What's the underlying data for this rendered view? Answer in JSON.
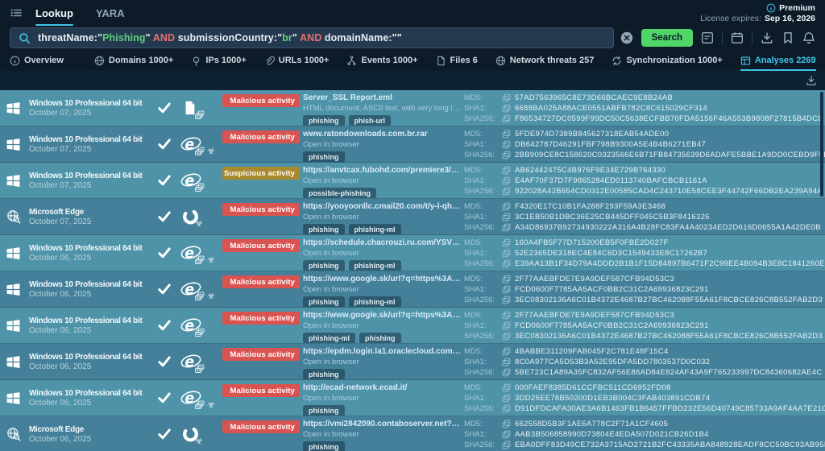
{
  "app": {
    "nav": {
      "lookup": "Lookup",
      "yara": "YARA"
    },
    "license": {
      "premium": "Premium",
      "expires_label": "License expires:",
      "expires_date": "Sep 16, 2026"
    }
  },
  "search": {
    "button": "Search",
    "query_parts": [
      {
        "text": "threatName:\"",
        "type": "plain"
      },
      {
        "text": "Phishing",
        "type": "value"
      },
      {
        "text": "\" ",
        "type": "plain"
      },
      {
        "text": "AND",
        "type": "operator"
      },
      {
        "text": " submissionCountry:\"",
        "type": "plain"
      },
      {
        "text": "br",
        "type": "value"
      },
      {
        "text": "\" ",
        "type": "plain"
      },
      {
        "text": "AND",
        "type": "operator"
      },
      {
        "text": " domainName:\"\"",
        "type": "plain"
      }
    ]
  },
  "result_tabs": [
    {
      "id": "overview",
      "icon": "info",
      "label": "Overview",
      "count": "",
      "active": false,
      "divider_after": true
    },
    {
      "id": "domains",
      "icon": "globe",
      "label": "Domains",
      "count": "1000+",
      "active": false
    },
    {
      "id": "ips",
      "icon": "pin",
      "label": "IPs",
      "count": "1000+",
      "active": false
    },
    {
      "id": "urls",
      "icon": "link",
      "label": "URLs",
      "count": "1000+",
      "active": false
    },
    {
      "id": "events",
      "icon": "branch",
      "label": "Events",
      "count": "1000+",
      "active": false
    },
    {
      "id": "files",
      "icon": "filetab",
      "label": "Files",
      "count": "6",
      "active": false
    },
    {
      "id": "network-threats",
      "icon": "netglobe",
      "label": "Network threats",
      "count": "257",
      "active": false
    },
    {
      "id": "synchronization",
      "icon": "sync",
      "label": "Synchronization",
      "count": "1000+",
      "active": false
    },
    {
      "id": "analyses",
      "icon": "window",
      "label": "Analyses",
      "count": "2269",
      "active": true
    }
  ],
  "table": {
    "hash_labels": {
      "md5": "MD5:",
      "sha1": "SHA1:",
      "sha256": "SHA256:"
    },
    "rows": [
      {
        "os": "Windows 10 Professional 64 bit",
        "os_icon": "windows",
        "date": "October 07, 2025",
        "verified": true,
        "main_icon": "file",
        "sub_icons": [
          "copies"
        ],
        "badge": {
          "label": "Malicious activity",
          "level": "malicious"
        },
        "title": "Server_SSL Report.eml",
        "subtitle": "HTML document, ASCII text, with very long lines (426), with CRLF...",
        "tags": [
          "phishing",
          "phish-url"
        ],
        "hashes": {
          "md5": "57AD7563965C8E73D66BCAEC9E8B24AB",
          "sha1": "6688BA025A88ACE0551ABFB782C8C615029CF314",
          "sha256": "F86534727DC0599F99DC50C5638ECFBB70FDA5156F46A553B9808F27815B4DCB"
        }
      },
      {
        "os": "Windows 10 Professional 64 bit",
        "os_icon": "windows",
        "date": "October 07, 2025",
        "verified": true,
        "main_icon": "ie",
        "sub_icons": [
          "copies",
          "biohazard"
        ],
        "badge": {
          "label": "Malicious activity",
          "level": "malicious"
        },
        "title": "www.ratondownloads.com.br.rar",
        "subtitle": "Open in browser",
        "tags": [
          "phishing"
        ],
        "hashes": {
          "md5": "5FDE974D7389B845627318EAB54ADE00",
          "sha1": "DB642787D46291FBF798B9300A5E4B4B6271EB47",
          "sha256": "2BB909CE8C158620C0323566E6B71FB84735639D6ADAFE5BBE1A9DD0CEBD9F5B"
        }
      },
      {
        "os": "Windows 10 Professional 64 bit",
        "os_icon": "windows",
        "date": "October 07, 2025",
        "verified": true,
        "main_icon": "ie",
        "sub_icons": [
          "copies"
        ],
        "badge": {
          "label": "Suspicious activity",
          "level": "suspicious"
        },
        "title": "https://anvtcax.fubohd.com/premiere3/mono.m3u8",
        "subtitle": "Open in browser",
        "tags": [
          "possible-phishing"
        ],
        "hashes": {
          "md5": "AB62442475C4B976F9E34E729B764330",
          "sha1": "E4AF70F37D7F9865284ED0113740BAFCBCB1161A",
          "sha256": "922028A42B654CD0312E00585CAD4C243710E58CEE3F44742F66DB2EA239A94A"
        }
      },
      {
        "os": "Microsoft Edge",
        "os_icon": "edge_globe",
        "date": "October 07, 2025",
        "verified": true,
        "main_icon": "edge",
        "sub_icons": [
          "biohazard"
        ],
        "badge": {
          "label": "Malicious activity",
          "level": "malicious"
        },
        "title": "https://yooyoonllc.cmail20.com/t/y-l-qhjlthk-hhfuiiim...",
        "subtitle": "Open in browser",
        "tags": [
          "phishing",
          "phishing-ml"
        ],
        "hashes": {
          "md5": "F4320E17C10B1FA288F293F59A3E3468",
          "sha1": "3C1EB50B1DBC36E25CB445DFF045C5B3F8416326",
          "sha256": "A34D86937B92734930222A316A4B28FC83FA4A40234ED2D616D0655A1A42DE0B"
        }
      },
      {
        "os": "Windows 10 Professional 64 bit",
        "os_icon": "windows",
        "date": "October 06, 2025",
        "verified": true,
        "main_icon": "ie",
        "sub_icons": [
          "copies",
          "biohazard"
        ],
        "badge": {
          "label": "Malicious activity",
          "level": "malicious"
        },
        "title": "https://schedule.chacrouzi.ru.com/YSVw!iHT2cZdPL...",
        "subtitle": "Open in browser",
        "tags": [
          "phishing",
          "phishing-ml"
        ],
        "hashes": {
          "md5": "160A4FB5F77D715200EB5F0FBE2D027F",
          "sha1": "52E2365DE318EC4E84C6D3C1549433E8C17262B7",
          "sha256": "E39AA13B1F34D79A4DDD2B1B1F15D84897B6471F2C99EE4B094B3E8C1841260E"
        }
      },
      {
        "os": "Windows 10 Professional 64 bit",
        "os_icon": "windows",
        "date": "October 06, 2025",
        "verified": true,
        "main_icon": "ie",
        "sub_icons": [
          "copies",
          "biohazard"
        ],
        "badge": {
          "label": "Malicious activity",
          "level": "malicious"
        },
        "title": "https://www.google.sk/url?q=https%3A%2F%2Fmr-or...",
        "subtitle": "Open in browser",
        "tags": [
          "phishing",
          "phishing-ml"
        ],
        "hashes": {
          "md5": "2F77AAEBFDE7E9A9DEF587CFB94D53C3",
          "sha1": "FCD0600F7785AA5ACF0BB2C31C2A69936823C291",
          "sha256": "3EC08302136A6C01B4372E4687B27BC462088F55A61F8CBCE826C8B552FAB2D3"
        }
      },
      {
        "os": "Windows 10 Professional 64 bit",
        "os_icon": "windows",
        "date": "October 06, 2025",
        "verified": true,
        "main_icon": "ie",
        "sub_icons": [
          "copies"
        ],
        "badge": {
          "label": "Malicious activity",
          "level": "malicious"
        },
        "title": "https://www.google.sk/url?q=https%3A%2F%2Fmr-or...",
        "subtitle": "Open in browser",
        "tags": [
          "phishing-ml",
          "phishing"
        ],
        "hashes": {
          "md5": "2F77AAEBFDE7E9A9DEF587CFB94D53C3",
          "sha1": "FCD0600F7785AA5ACF0BB2C31C2A69936823C291",
          "sha256": "3EC08302136A6C01B4372E4687B27BC462088F55A61F8CBCE826C8B552FAB2D3"
        }
      },
      {
        "os": "Windows 10 Professional 64 bit",
        "os_icon": "windows",
        "date": "October 06, 2025",
        "verified": true,
        "main_icon": "ie",
        "sub_icons": [
          "copies"
        ],
        "badge": {
          "label": "Malicious activity",
          "level": "malicious"
        },
        "title": "https://epdm.login.la1.oraclecloud.com/oam/server/o...",
        "subtitle": "Open in browser",
        "tags": [
          "phishing"
        ],
        "hashes": {
          "md5": "4BABBE311209FAB045F2C781E48F15C4",
          "sha1": "8C0A977CA5D53B3A52E95DFA5DD7803537D0C032",
          "sha256": "5BE723C1A89A35FC832AF56E86AD84E824AF43A9F765233997DC84360682AE4C"
        }
      },
      {
        "os": "Windows 10 Professional 64 bit",
        "os_icon": "windows",
        "date": "October 06, 2025",
        "verified": true,
        "main_icon": "ie",
        "sub_icons": [
          "copies",
          "biohazard"
        ],
        "badge": {
          "label": "Malicious activity",
          "level": "malicious"
        },
        "title": "http://ecad-network.ecad.it/",
        "subtitle": "Open in browser",
        "tags": [
          "phishing"
        ],
        "hashes": {
          "md5": "000FAEF8385D61CCFBC511CD6952FD08",
          "sha1": "3DD25EE78B50200D1EB3B004C3FAB403891CDB74",
          "sha256": "D91DFDCAFA30AE3A6B1463FB1B6457FFBD232E56D40749C85733A9AF4AA7E21C"
        }
      },
      {
        "os": "Microsoft Edge",
        "os_icon": "edge_globe",
        "date": "October 06, 2025",
        "verified": true,
        "main_icon": "edge",
        "sub_icons": [
          "biohazard"
        ],
        "badge": {
          "label": "Malicious activity",
          "level": "malicious"
        },
        "title": "https://vmi2842090.contaboserver.net?projeto/index....",
        "subtitle": "Open in browser",
        "tags": [
          "phishing"
        ],
        "hashes": {
          "md5": "662558D5B3F1AE6A778C2F71A1CF4605",
          "sha1": "AAB3B506858990D73804E4EDA507D021CB26D1B4",
          "sha256": "EBA0DFF83D49CE732A3715AD2721B2FC43335ABA848928EADF8CC50BC93AB95D"
        }
      }
    ]
  },
  "icons": {
    "menu": "list-menu",
    "search": "magnifier",
    "clear": "circle-x",
    "saved_queries": "form-lines",
    "calendar": "calendar",
    "download": "download-tray",
    "bookmark": "bookmark",
    "notifications": "bell",
    "premium": "info-circle",
    "check": "checkmark",
    "copy": "duplicate",
    "copies": "stacked-windows",
    "biohazard": "biohazard",
    "windows": "windows-logo",
    "edge_globe": "globe-magnifier",
    "ie": "internet-explorer",
    "edge": "edge-swirl",
    "file": "document",
    "export": "download-tray"
  },
  "theme": {
    "accent_teal": "#41c4e6",
    "search_green": "#50d569",
    "malicious_red": "#d95450",
    "suspicious_yellow": "#a8892e",
    "row_light": "#4f93a9",
    "row_dark": "#44809a",
    "top_bg": "#0d1b29",
    "value_green": "#5fcf7d",
    "operator_red": "#e5706b"
  }
}
